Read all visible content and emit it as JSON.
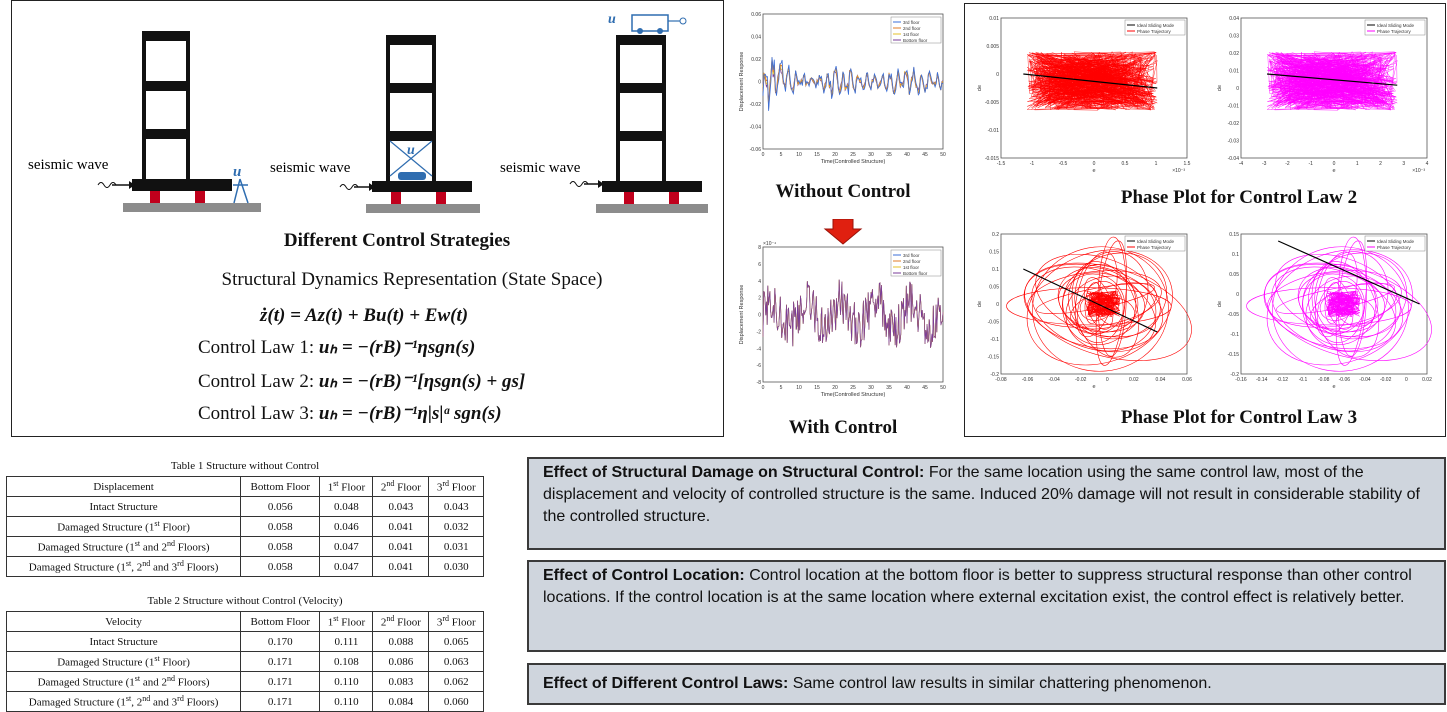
{
  "panel_left": {
    "wave_label": "seismic wave",
    "u_label": "u",
    "title": "Different Control Strategies",
    "subtitle": "Structural Dynamics Representation (State Space)",
    "state_eq": "ż(t) = Az(t) + Bu(t) + Ew(t)",
    "law1_label": "Control Law 1:",
    "law1_eq": "uₕ = −(rB)⁻¹ηsgn(s)",
    "law2_label": "Control Law 2:",
    "law2_eq": "uₕ = −(rB)⁻¹[ηsgn(s) + gs]",
    "law3_label": "Control Law 3:",
    "law3_eq": "uₕ = −(rB)⁻¹η|s|ᵅ sgn(s)"
  },
  "panel_middle": {
    "without_label": "Without Control",
    "with_label": "With Control",
    "legend": [
      "3rd floor",
      "2nd floor",
      "1st floor",
      "Bottom floor"
    ],
    "ylabel": "Displacement Response",
    "xlabel": "Time(Controlled Structure)",
    "top_yticks": [
      "0.06",
      "0.04",
      "0.02",
      "0",
      "-0.02",
      "-0.04",
      "-0.06"
    ],
    "top_xticks": [
      "0",
      "5",
      "10",
      "15",
      "20",
      "25",
      "30",
      "35",
      "40",
      "45",
      "50"
    ],
    "bot_exp": "×10⁻⁴",
    "bot_yticks": [
      "8",
      "6",
      "4",
      "2",
      "0",
      "-2",
      "-4",
      "-6",
      "-8"
    ],
    "bot_xticks": [
      "0",
      "5",
      "10",
      "15",
      "20",
      "25",
      "30",
      "35",
      "40",
      "45",
      "50"
    ]
  },
  "panel_right": {
    "title2": "Phase Plot for Control Law 2",
    "title3": "Phase Plot for Control Law 3",
    "legend": [
      "Ideal Sliding Mode",
      "Phase Trajectory"
    ],
    "ylabel": "de",
    "xlabel": "e",
    "p1_yticks": [
      "0.01",
      "0.005",
      "0",
      "-0.005",
      "-0.01",
      "-0.015"
    ],
    "p1_xticks": [
      "-1.5",
      "-1",
      "-0.5",
      "0",
      "0.5",
      "1",
      "1.5"
    ],
    "p1_exp": "×10⁻³",
    "p2_yticks": [
      "0.04",
      "0.03",
      "0.02",
      "0.01",
      "0",
      "-0.01",
      "-0.02",
      "-0.03",
      "-0.04"
    ],
    "p2_xticks": [
      "-4",
      "-3",
      "-2",
      "-1",
      "0",
      "1",
      "2",
      "3",
      "4"
    ],
    "p2_exp": "×10⁻³",
    "p3_yticks": [
      "0.2",
      "0.15",
      "0.1",
      "0.05",
      "0",
      "-0.05",
      "-0.1",
      "-0.15",
      "-0.2"
    ],
    "p3_xticks": [
      "-0.08",
      "-0.06",
      "-0.04",
      "-0.02",
      "0",
      "0.02",
      "0.04",
      "0.06"
    ],
    "p4_yticks": [
      "0.15",
      "0.1",
      "0.05",
      "0",
      "-0.05",
      "-0.1",
      "-0.15",
      "-0.2"
    ],
    "p4_xticks": [
      "-0.16",
      "-0.14",
      "-0.12",
      "-0.1",
      "-0.08",
      "-0.06",
      "-0.04",
      "-0.02",
      "0",
      "0.02"
    ]
  },
  "table1": {
    "caption": "Table 1 Structure without Control",
    "header": [
      "Displacement",
      "Bottom Floor",
      "1st Floor",
      "2nd Floor",
      "3rd Floor"
    ],
    "rows": [
      [
        "Intact Structure",
        "0.056",
        "0.048",
        "0.043",
        "0.043"
      ],
      [
        "Damaged Structure (1st Floor)",
        "0.058",
        "0.046",
        "0.041",
        "0.032"
      ],
      [
        "Damaged Structure (1st and 2nd Floors)",
        "0.058",
        "0.047",
        "0.041",
        "0.031"
      ],
      [
        "Damaged Structure (1st, 2nd and 3rd Floors)",
        "0.058",
        "0.047",
        "0.041",
        "0.030"
      ]
    ]
  },
  "table2": {
    "caption": "Table 2 Structure without Control (Velocity)",
    "header": [
      "Velocity",
      "Bottom Floor",
      "1st Floor",
      "2nd Floor",
      "3rd Floor"
    ],
    "rows": [
      [
        "Intact Structure",
        "0.170",
        "0.111",
        "0.088",
        "0.065"
      ],
      [
        "Damaged Structure (1st Floor)",
        "0.171",
        "0.108",
        "0.086",
        "0.063"
      ],
      [
        "Damaged Structure (1st and 2nd Floors)",
        "0.171",
        "0.110",
        "0.083",
        "0.062"
      ],
      [
        "Damaged Structure (1st, 2nd and 3rd Floors)",
        "0.171",
        "0.110",
        "0.084",
        "0.060"
      ]
    ]
  },
  "notes": [
    {
      "heading": "Effect of Structural Damage on Structural Control:",
      "body": " For the same location using the same control law, most of the displacement and velocity of controlled structure is the same. Induced 20% damage will not result in considerable stability of the controlled structure."
    },
    {
      "heading": "Effect of Control Location:",
      "body": " Control location at the bottom floor is better to suppress structural response than other control locations. If the control location is at the same location where external excitation exist, the control effect is relatively better."
    },
    {
      "heading": "Effect of Different Control Laws:",
      "body": " Same control law results in similar chattering phenomenon."
    }
  ],
  "colors": {
    "floor_black": "#111111",
    "column_red": "#c0001c",
    "ground_gray": "#8c8c8c",
    "actuator_blue": "#2f6db0",
    "series": [
      "#3b6fd8",
      "#e07b24",
      "#e6c229",
      "#7a3b9a"
    ],
    "phase_red": "#ff0000",
    "phase_magenta": "#ff00ff",
    "arrow_red": "#e02010",
    "note_bg": "#cfd5dd"
  }
}
